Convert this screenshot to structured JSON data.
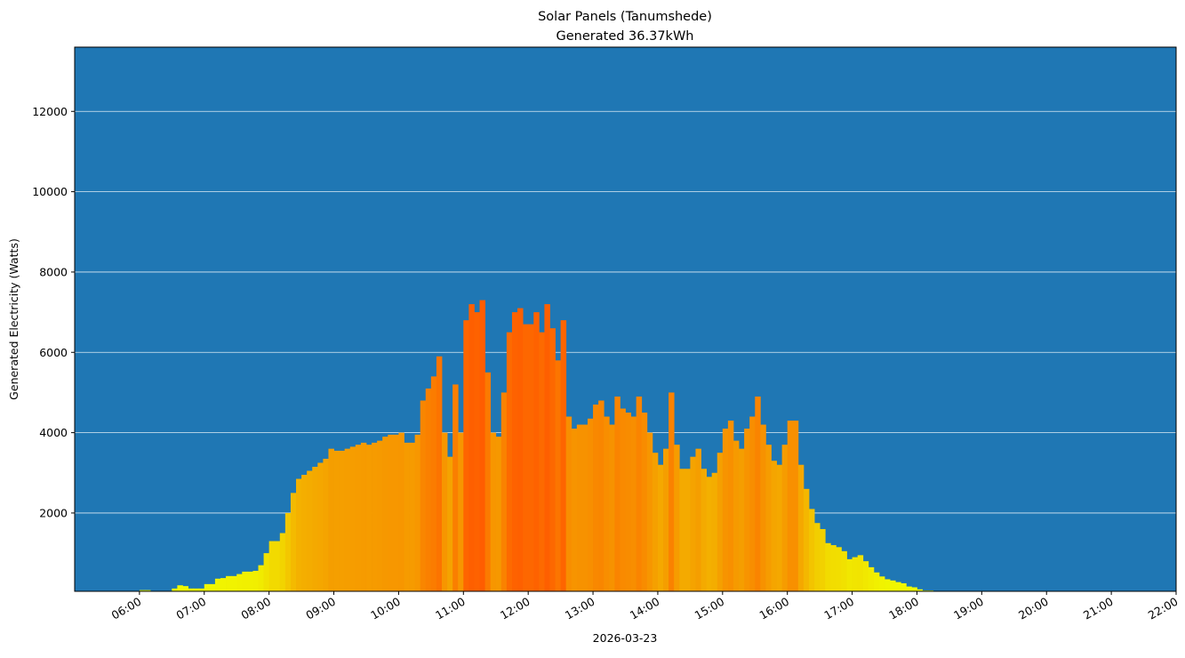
{
  "chart_data": {
    "type": "bar",
    "title": "Solar Panels (Tanumshede)",
    "subtitle": "Generated 36.37kWh",
    "xlabel": "2026-03-23",
    "ylabel": "Generated Electricity (Watts)",
    "xlim": [
      "05:00",
      "22:00"
    ],
    "ylim": [
      50,
      13600
    ],
    "grid": "horizontal",
    "background_color": "#1f77b4",
    "grid_color": "#ffffff",
    "colormap": [
      {
        "value": 0,
        "color": "#f0ff00"
      },
      {
        "value": 1500,
        "color": "#f2d400"
      },
      {
        "value": 3500,
        "color": "#f5a000"
      },
      {
        "value": 5000,
        "color": "#fa8200"
      },
      {
        "value": 7500,
        "color": "#ff5a00"
      }
    ],
    "x_tick_labels": [
      "06:00",
      "07:00",
      "08:00",
      "09:00",
      "10:00",
      "11:00",
      "12:00",
      "13:00",
      "14:00",
      "15:00",
      "16:00",
      "17:00",
      "18:00",
      "19:00",
      "20:00",
      "21:00",
      "22:00"
    ],
    "y_ticks": [
      2000,
      4000,
      6000,
      8000,
      10000,
      12000
    ],
    "y_tick_labels": [
      "2000",
      "4000",
      "6000",
      "8000",
      "10000",
      "12000"
    ],
    "x_start": "06:00",
    "step_minutes": 5,
    "values": [
      80,
      80,
      0,
      0,
      0,
      0,
      120,
      200,
      180,
      120,
      120,
      120,
      230,
      230,
      365,
      380,
      430,
      430,
      480,
      540,
      540,
      560,
      700,
      1000,
      1300,
      1300,
      1500,
      2000,
      2500,
      2850,
      2950,
      3050,
      3150,
      3250,
      3350,
      3600,
      3550,
      3550,
      3600,
      3650,
      3700,
      3750,
      3700,
      3750,
      3800,
      3900,
      3950,
      3950,
      4000,
      3750,
      3750,
      3950,
      4800,
      5100,
      5400,
      5900,
      4000,
      3400,
      5200,
      4000,
      6800,
      7200,
      7000,
      7300,
      5500,
      4000,
      3900,
      5000,
      6500,
      7000,
      7100,
      6700,
      6700,
      7000,
      6500,
      7200,
      6600,
      5800,
      6800,
      4400,
      4100,
      4200,
      4200,
      4350,
      4700,
      4800,
      4400,
      4200,
      4900,
      4600,
      4500,
      4400,
      4900,
      4500,
      4000,
      3500,
      3200,
      3600,
      5000,
      3700,
      3100,
      3100,
      3400,
      3600,
      3100,
      2900,
      3000,
      3500,
      4100,
      4300,
      3800,
      3600,
      4100,
      4400,
      4900,
      4200,
      3700,
      3300,
      3200,
      3700,
      4300,
      4300,
      3200,
      2600,
      2100,
      1750,
      1600,
      1250,
      1200,
      1150,
      1050,
      850,
      900,
      950,
      800,
      650,
      520,
      420,
      350,
      320,
      280,
      250,
      170,
      150,
      100,
      70,
      70,
      30
    ]
  }
}
